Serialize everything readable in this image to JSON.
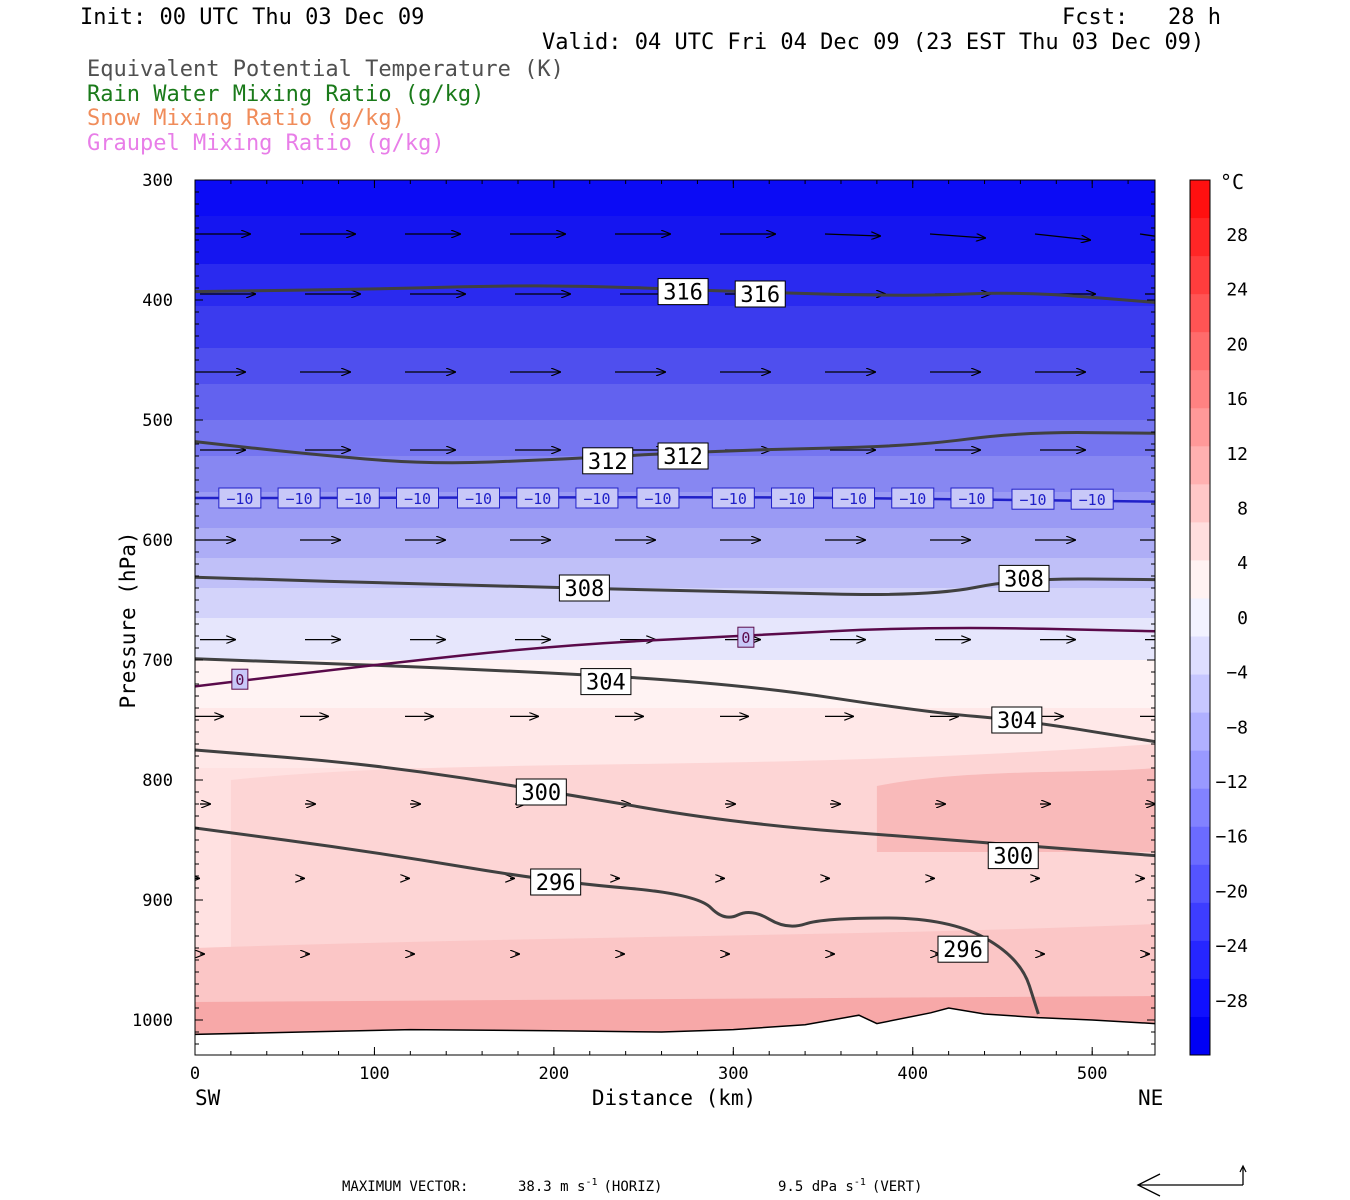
{
  "header": {
    "init": "Init: 00 UTC Thu 03 Dec 09",
    "fcst": "Fcst:   28 h",
    "valid": "Valid: 04 UTC Fri 04 Dec 09 (23 EST Thu 03 Dec 09)"
  },
  "legend": [
    {
      "label": "Equivalent Potential Temperature (K)",
      "color": "#505050"
    },
    {
      "label": "Rain Water Mixing Ratio (g/kg)",
      "color": "#1a7a1a"
    },
    {
      "label": "Snow Mixing Ratio (g/kg)",
      "color": "#f08c5a"
    },
    {
      "label": "Graupel Mixing Ratio (g/kg)",
      "color": "#e87ee8"
    }
  ],
  "chart_data": {
    "type": "contour",
    "xlabel": "Distance (km)",
    "ylabel": "Pressure (hPa)",
    "xlim": [
      0,
      535
    ],
    "ylim": [
      1030,
      300
    ],
    "x_ticks": [
      "0",
      "100",
      "200",
      "300",
      "400",
      "500"
    ],
    "y_ticks": [
      "300",
      "400",
      "500",
      "600",
      "700",
      "800",
      "900",
      "1000"
    ],
    "x_left_label": "SW",
    "x_right_label": "NE",
    "colorbar": {
      "unit": "°C",
      "labels": [
        "28",
        "24",
        "20",
        "16",
        "12",
        "8",
        "4",
        "0",
        "−4",
        "−8",
        "−12",
        "−16",
        "−20",
        "−24",
        "−28"
      ]
    },
    "theta_e_contours": [
      {
        "level": "316",
        "points": [
          [
            0,
            393
          ],
          [
            100,
            391
          ],
          [
            200,
            387
          ],
          [
            300,
            393
          ],
          [
            400,
            397
          ],
          [
            460,
            393
          ],
          [
            535,
            402
          ]
        ],
        "labels": [
          [
            272,
            393
          ],
          [
            315,
            395
          ]
        ]
      },
      {
        "level": "312",
        "points": [
          [
            0,
            518
          ],
          [
            60,
            528
          ],
          [
            130,
            537
          ],
          [
            200,
            533
          ],
          [
            300,
            525
          ],
          [
            400,
            522
          ],
          [
            460,
            510
          ],
          [
            535,
            511
          ]
        ],
        "labels": [
          [
            230,
            534
          ],
          [
            272,
            530
          ]
        ]
      },
      {
        "level": "308",
        "points": [
          [
            0,
            631
          ],
          [
            150,
            638
          ],
          [
            300,
            643
          ],
          [
            410,
            647
          ],
          [
            460,
            632
          ],
          [
            535,
            633
          ]
        ],
        "labels": [
          [
            217,
            640
          ],
          [
            462,
            632
          ]
        ]
      },
      {
        "level": "304",
        "points": [
          [
            0,
            699
          ],
          [
            150,
            707
          ],
          [
            300,
            719
          ],
          [
            410,
            744
          ],
          [
            460,
            750
          ],
          [
            535,
            768
          ]
        ],
        "labels": [
          [
            229,
            718
          ],
          [
            458,
            750
          ]
        ]
      },
      {
        "level": "300",
        "points": [
          [
            0,
            775
          ],
          [
            100,
            787
          ],
          [
            200,
            810
          ],
          [
            300,
            836
          ],
          [
            420,
            850
          ],
          [
            535,
            863
          ]
        ],
        "labels": [
          [
            193,
            810
          ],
          [
            456,
            863
          ]
        ]
      },
      {
        "level": "296",
        "points": [
          [
            0,
            840
          ],
          [
            100,
            860
          ],
          [
            200,
            885
          ],
          [
            280,
            895
          ],
          [
            295,
            918
          ],
          [
            310,
            907
          ],
          [
            330,
            925
          ],
          [
            350,
            915
          ],
          [
            420,
            915
          ],
          [
            460,
            948
          ],
          [
            470,
            995
          ]
        ],
        "labels": [
          [
            201,
            885
          ],
          [
            428,
            941
          ]
        ]
      }
    ],
    "temperature_contours": [
      {
        "level": "−10",
        "points": [
          [
            0,
            565
          ],
          [
            100,
            565
          ],
          [
            300,
            564
          ],
          [
            420,
            566
          ],
          [
            535,
            568
          ]
        ],
        "labels": [
          [
            25,
            565
          ],
          [
            58,
            565
          ],
          [
            91,
            565
          ],
          [
            124,
            565
          ],
          [
            158,
            565
          ],
          [
            191,
            565
          ],
          [
            224,
            565
          ],
          [
            258,
            565
          ],
          [
            300,
            565
          ],
          [
            333,
            565
          ],
          [
            367,
            565
          ],
          [
            400,
            565
          ],
          [
            433,
            565
          ],
          [
            467,
            566
          ],
          [
            500,
            566
          ]
        ]
      },
      {
        "level": "0",
        "points": [
          [
            0,
            722
          ],
          [
            100,
            704
          ],
          [
            200,
            688
          ],
          [
            300,
            680
          ],
          [
            410,
            672
          ],
          [
            535,
            676
          ]
        ],
        "labels": [
          [
            25,
            716
          ],
          [
            307,
            681
          ]
        ]
      }
    ],
    "wind_vectors": [
      {
        "rows_hpa": [
          345,
          395,
          460,
          525,
          600,
          683,
          747,
          820,
          882,
          945
        ],
        "note": "arrows on cross-section grid"
      }
    ],
    "max_vector": {
      "label": "MAXIMUM VECTOR:",
      "horiz": "38.3 m s",
      "horiz_tag": "(HORIZ)",
      "vert": "9.5 dPa s",
      "vert_tag": "(VERT)",
      "exp": "-1"
    }
  }
}
